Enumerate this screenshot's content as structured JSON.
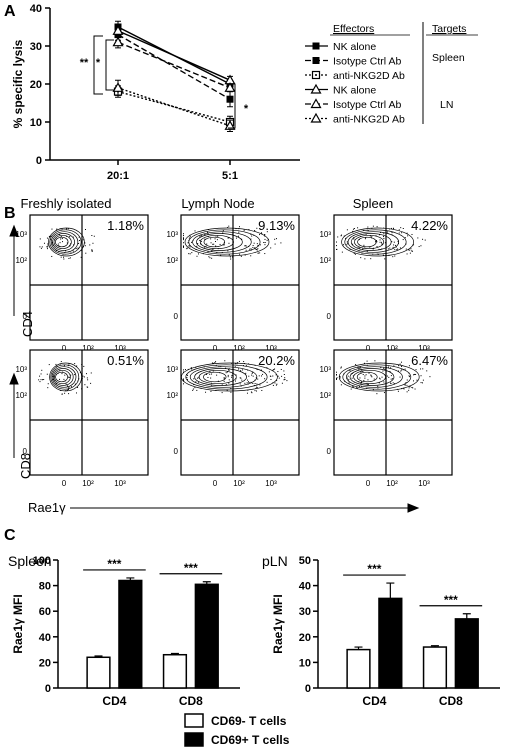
{
  "panel_a": {
    "letter": "A",
    "sig_labels": [
      "**",
      "*",
      "*"
    ],
    "legend": {
      "header_effectors": "Effectors",
      "header_targets": "Targets",
      "target_spleen": "Spleen",
      "target_ln": "LN",
      "rows": [
        {
          "label": "NK alone",
          "marker": "filled-square",
          "line": "solid"
        },
        {
          "label": "Isotype Ctrl Ab",
          "marker": "filled-square",
          "line": "dashed"
        },
        {
          "label": "anti-NKG2D Ab",
          "marker": "open-square-dot",
          "line": "dotted"
        },
        {
          "label": "NK alone",
          "marker": "open-triangle",
          "line": "solid"
        },
        {
          "label": "Isotype Ctrl Ab",
          "marker": "open-triangle",
          "line": "dashed"
        },
        {
          "label": "anti-NKG2D Ab",
          "marker": "open-triangle",
          "line": "dotted"
        }
      ]
    },
    "chart_data": {
      "type": "line",
      "ylabel": "% specific lysis",
      "xlabel": "",
      "categories": [
        "20:1",
        "5:1"
      ],
      "ylim": [
        0,
        40
      ],
      "yticks": [
        "0",
        "10",
        "20",
        "30",
        "40"
      ],
      "series": [
        {
          "name": "NK alone (Spleen)",
          "values": [
            35,
            20
          ],
          "err": [
            1.5,
            1
          ]
        },
        {
          "name": "Isotype Ctrl Ab (Spleen)",
          "values": [
            33,
            16
          ],
          "err": [
            1.5,
            2
          ]
        },
        {
          "name": "anti-NKG2D Ab (Spleen)",
          "values": [
            18,
            10
          ],
          "err": [
            1.5,
            1.5
          ]
        },
        {
          "name": "NK alone (LN)",
          "values": [
            34,
            21
          ],
          "err": [
            1.5,
            1
          ]
        },
        {
          "name": "Isotype Ctrl Ab (LN)",
          "values": [
            31,
            19
          ],
          "err": [
            1.5,
            1
          ]
        },
        {
          "name": "anti-NKG2D Ab (LN)",
          "values": [
            19,
            9
          ],
          "err": [
            2,
            1.5
          ]
        }
      ]
    }
  },
  "panel_b": {
    "letter": "B",
    "columns": [
      "Freshly isolated",
      "Lymph Node",
      "Spleen"
    ],
    "ylabels": [
      "CD4",
      "CD8"
    ],
    "xlabel": "Rae1γ",
    "tick_labels": {
      "y": [
        "10³",
        "10²",
        "0"
      ],
      "x": [
        "0",
        "10²",
        "10³"
      ]
    },
    "percentages": [
      [
        "1.18%",
        "9.13%",
        "4.22%"
      ],
      [
        "0.51%",
        "20.2%",
        "6.47%"
      ]
    ],
    "population_spread": [
      [
        0.15,
        0.75,
        0.6
      ],
      [
        0.1,
        0.9,
        0.7
      ]
    ]
  },
  "panel_c": {
    "letter": "C",
    "legend": [
      "CD69- T cells",
      "CD69+ T cells"
    ],
    "chart_data": [
      {
        "type": "bar",
        "title": "Spleen",
        "ylabel": "Rae1γ MFI",
        "categories": [
          "CD4",
          "CD8"
        ],
        "series": [
          {
            "name": "CD69- T cells",
            "values": [
              24,
              26
            ],
            "err": [
              1,
              1
            ]
          },
          {
            "name": "CD69+ T cells",
            "values": [
              84,
              81
            ],
            "err": [
              2,
              2
            ]
          }
        ],
        "ylim": [
          0,
          100
        ],
        "yticks": [
          "0",
          "20",
          "40",
          "60",
          "80",
          "100"
        ],
        "significance": [
          "***",
          "***"
        ]
      },
      {
        "type": "bar",
        "title": "pLN",
        "ylabel": "Rae1γ MFI",
        "categories": [
          "CD4",
          "CD8"
        ],
        "series": [
          {
            "name": "CD69- T cells",
            "values": [
              15,
              16
            ],
            "err": [
              1,
              0.5
            ]
          },
          {
            "name": "CD69+ T cells",
            "values": [
              35,
              27
            ],
            "err": [
              6,
              2
            ]
          }
        ],
        "ylim": [
          0,
          50
        ],
        "yticks": [
          "0",
          "10",
          "20",
          "30",
          "40",
          "50"
        ],
        "significance": [
          "***",
          "***"
        ]
      }
    ]
  }
}
